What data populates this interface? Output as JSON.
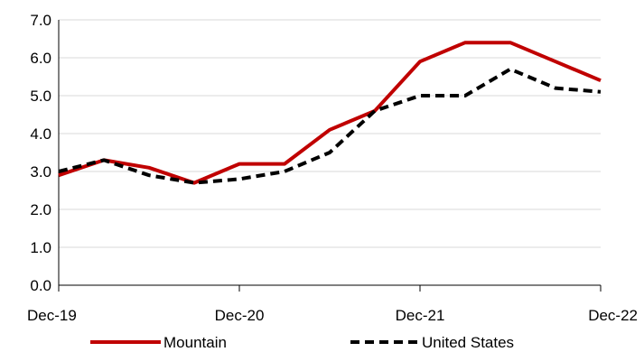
{
  "chart_data": {
    "type": "line",
    "title": "",
    "xlabel": "",
    "ylabel": "",
    "x": [
      "Dec-19",
      "Mar-20",
      "Jun-20",
      "Sep-20",
      "Dec-20",
      "Mar-21",
      "Jun-21",
      "Sep-21",
      "Dec-21",
      "Mar-22",
      "Jun-22",
      "Sep-22",
      "Dec-22"
    ],
    "x_tick_labels": [
      "Dec-19",
      "Dec-20",
      "Dec-21",
      "Dec-22"
    ],
    "x_tick_indices": [
      0,
      4,
      8,
      12
    ],
    "ylim": [
      0,
      7
    ],
    "y_tick_labels": [
      "0.0",
      "1.0",
      "2.0",
      "3.0",
      "4.0",
      "5.0",
      "6.0",
      "7.0"
    ],
    "y_tick_values": [
      0,
      1,
      2,
      3,
      4,
      5,
      6,
      7
    ],
    "grid": "horizontal",
    "legend_position": "bottom",
    "series": [
      {
        "name": "Mountain",
        "color": "#c00000",
        "style": "solid",
        "values": [
          2.9,
          3.3,
          3.1,
          2.7,
          3.2,
          3.2,
          4.1,
          4.6,
          5.9,
          6.4,
          6.4,
          5.9,
          5.4
        ]
      },
      {
        "name": "United States",
        "color": "#000000",
        "style": "dashed",
        "values": [
          3.0,
          3.3,
          2.9,
          2.7,
          2.8,
          3.0,
          3.5,
          4.6,
          5.0,
          5.0,
          5.7,
          5.2,
          5.1
        ]
      }
    ]
  }
}
